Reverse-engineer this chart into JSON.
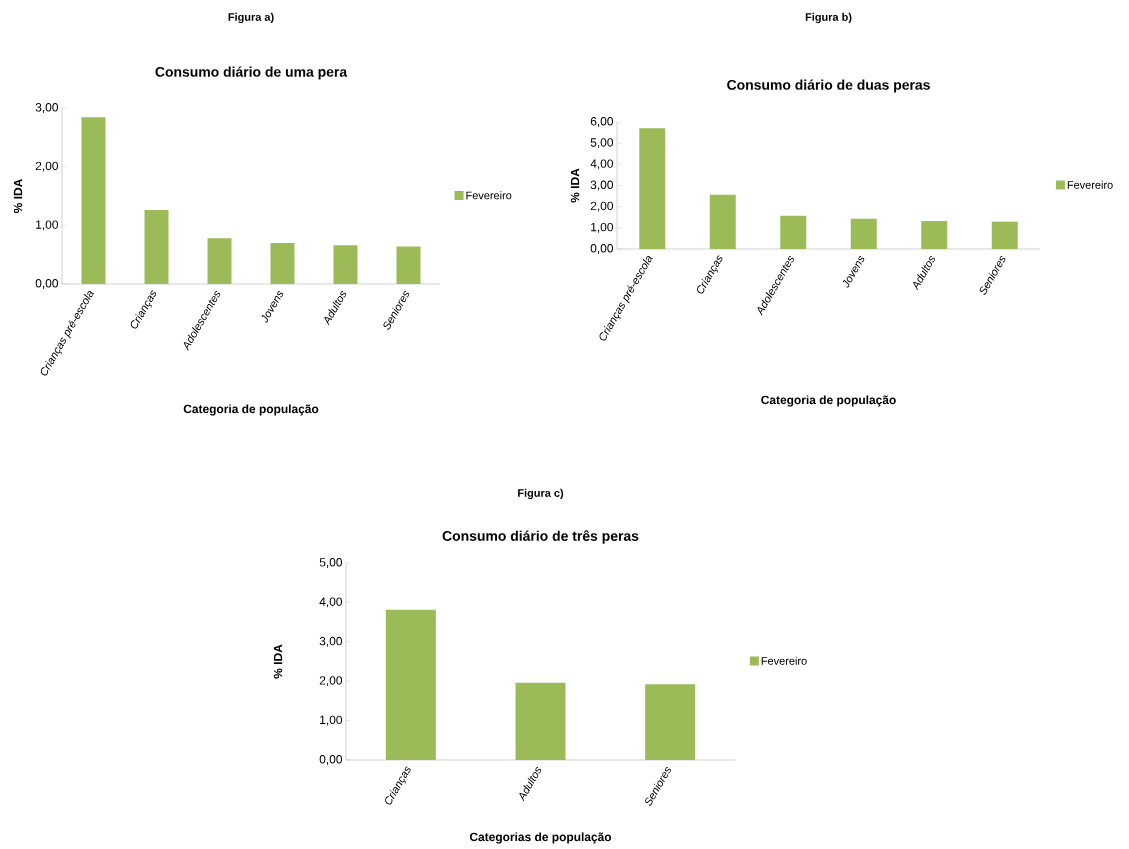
{
  "chart_data": [
    {
      "type": "bar",
      "title": "Consumo diário de uma pera",
      "annotations": [
        "Figura a)"
      ],
      "xlabel": "Categoria de população",
      "ylabel": "% IDA",
      "categories": [
        "Crianças pré-escola",
        "Crianças",
        "Adolescentes",
        "Jovens",
        "Adultos",
        "Seniores"
      ],
      "series": [
        {
          "name": "Fevereiro",
          "color": "#9bbb59",
          "values": [
            2.84,
            1.26,
            0.78,
            0.7,
            0.66,
            0.64
          ]
        }
      ],
      "ylim": [
        0,
        3
      ],
      "yticks": [
        {
          "value": 0,
          "label": "0,00"
        },
        {
          "value": 1,
          "label": "1,00"
        },
        {
          "value": 2,
          "label": "2,00"
        },
        {
          "value": 3,
          "label": "3,00"
        }
      ],
      "legend": "right"
    },
    {
      "type": "bar",
      "title": "Consumo diário de duas peras",
      "annotations": [
        "Figura b)"
      ],
      "xlabel": "Categoria de população",
      "ylabel": "% IDA",
      "categories": [
        "Crianças pré-escola",
        "Crianças",
        "Adolescentes",
        "Jovens",
        "Adultos",
        "Seniores"
      ],
      "series": [
        {
          "name": "Fevereiro",
          "color": "#9bbb59",
          "values": [
            5.7,
            2.56,
            1.57,
            1.43,
            1.32,
            1.29
          ]
        }
      ],
      "ylim": [
        0,
        6
      ],
      "yticks": [
        {
          "value": 0,
          "label": "0,00"
        },
        {
          "value": 1,
          "label": "1,00"
        },
        {
          "value": 2,
          "label": "2,00"
        },
        {
          "value": 3,
          "label": "3,00"
        },
        {
          "value": 4,
          "label": "4,00"
        },
        {
          "value": 5,
          "label": "5,00"
        },
        {
          "value": 6,
          "label": "6,00"
        }
      ],
      "legend": "right"
    },
    {
      "type": "bar",
      "title": "Consumo diário de três peras",
      "annotations": [
        "Figura c)"
      ],
      "xlabel": "Categorias de população",
      "ylabel": "% IDA",
      "categories": [
        "Crianças",
        "Adultos",
        "Seniores"
      ],
      "series": [
        {
          "name": "Fevereiro",
          "color": "#9bbb59",
          "values": [
            3.81,
            1.96,
            1.92
          ]
        }
      ],
      "ylim": [
        0,
        5
      ],
      "yticks": [
        {
          "value": 0,
          "label": "0,00"
        },
        {
          "value": 1,
          "label": "1,00"
        },
        {
          "value": 2,
          "label": "2,00"
        },
        {
          "value": 3,
          "label": "3,00"
        },
        {
          "value": 4,
          "label": "4,00"
        },
        {
          "value": 5,
          "label": "5,00"
        }
      ],
      "legend": "right"
    }
  ]
}
